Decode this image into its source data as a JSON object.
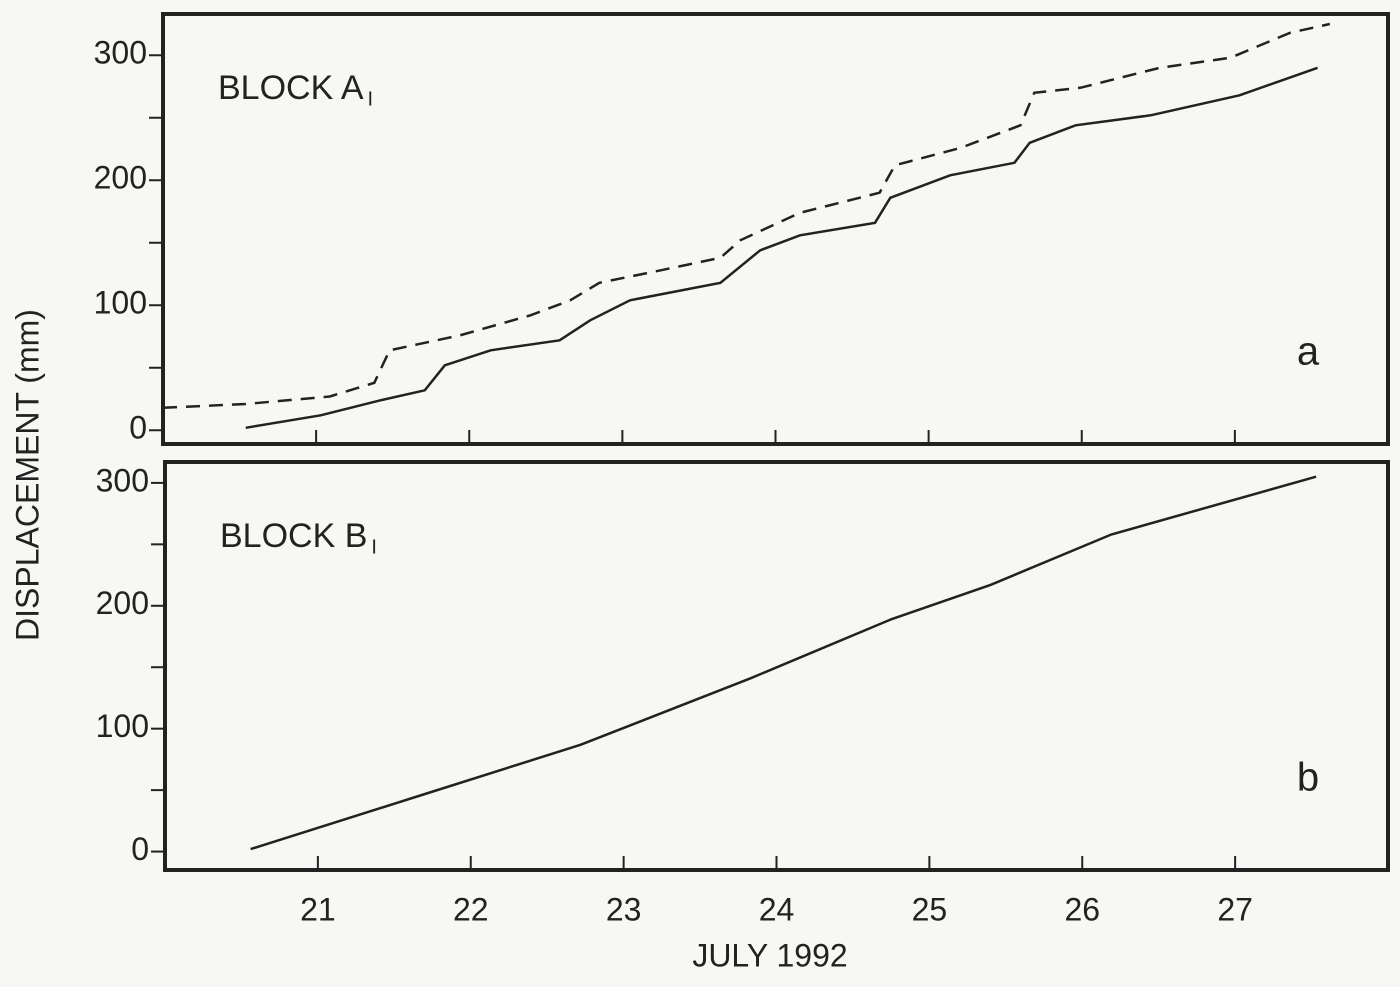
{
  "chart_data": [
    {
      "type": "line",
      "ylabel": "DISPLACEMENT (mm)",
      "annotation": "BLOCK A",
      "annotation_sub": "I",
      "panel_label": "a",
      "xlim": [
        20,
        28
      ],
      "xticks": [
        21,
        22,
        23,
        24,
        25,
        26,
        27
      ],
      "show_xtick_labels": false,
      "ylim": [
        -11,
        333
      ],
      "yticks": [
        0,
        100,
        200,
        300
      ],
      "minor_yticks": [
        50,
        150,
        250
      ],
      "series": [
        {
          "color": "#222222",
          "dashed": false,
          "x": [
            20.54,
            21.03,
            21.42,
            21.71,
            21.84,
            22.14,
            22.59,
            22.79,
            23.05,
            23.64,
            23.9,
            24.16,
            24.65,
            24.75,
            25.14,
            25.56,
            25.66,
            25.96,
            26.45,
            27.03,
            27.54
          ],
          "values": [
            2,
            12,
            24,
            32,
            52,
            64,
            72,
            88,
            104,
            118,
            144,
            156,
            166,
            186,
            204,
            214,
            230,
            244,
            252,
            268,
            290
          ]
        },
        {
          "color": "#222222",
          "dashed": true,
          "x": [
            20.0,
            20.54,
            21.09,
            21.38,
            21.48,
            21.94,
            22.4,
            22.66,
            22.85,
            23.25,
            23.64,
            23.77,
            24.16,
            24.68,
            24.78,
            25.21,
            25.6,
            25.69,
            25.99,
            26.51,
            26.97,
            27.36,
            27.62
          ],
          "values": [
            18,
            21,
            27,
            38,
            64,
            76,
            92,
            104,
            118,
            128,
            138,
            152,
            174,
            190,
            212,
            226,
            244,
            270,
            274,
            290,
            298,
            318,
            325
          ]
        }
      ]
    },
    {
      "type": "line",
      "xlabel": "JULY 1992",
      "annotation": "BLOCK B",
      "annotation_sub": "I",
      "panel_label": "b",
      "xlim": [
        20,
        28
      ],
      "xticks": [
        21,
        22,
        23,
        24,
        25,
        26,
        27
      ],
      "show_xtick_labels": true,
      "ylim": [
        -15,
        317
      ],
      "yticks": [
        0,
        100,
        200,
        300
      ],
      "minor_yticks": [
        50,
        150,
        250
      ],
      "series": [
        {
          "color": "#222222",
          "dashed": false,
          "x": [
            20.56,
            21.68,
            22.72,
            23.83,
            24.75,
            25.4,
            26.19,
            27.53
          ],
          "values": [
            2,
            46,
            87,
            141,
            189,
            217,
            258,
            305
          ]
        }
      ]
    }
  ]
}
